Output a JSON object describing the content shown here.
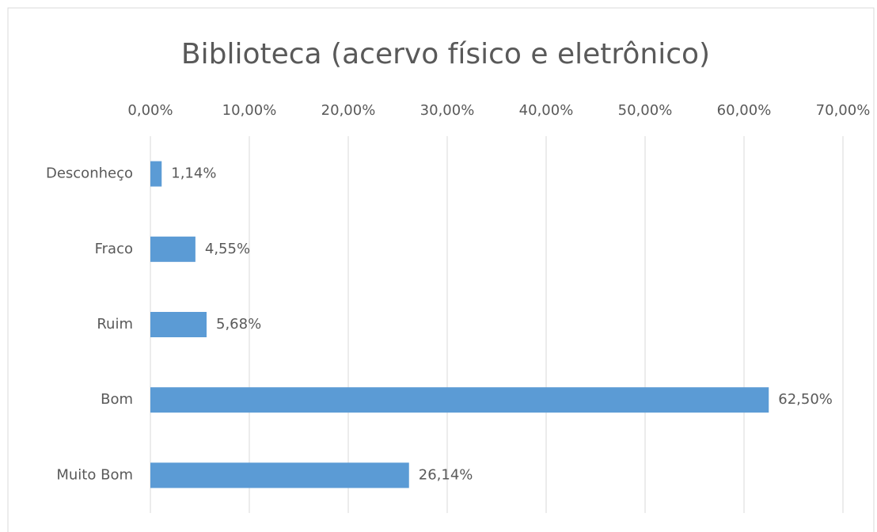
{
  "chart_data": {
    "type": "bar",
    "orientation": "horizontal",
    "title": "Biblioteca (acervo físico e eletrônico)",
    "categories": [
      "Desconheço",
      "Fraco",
      "Ruim",
      "Bom",
      "Muito Bom"
    ],
    "values": [
      1.14,
      4.55,
      5.68,
      62.5,
      26.14
    ],
    "value_labels": [
      "1,14%",
      "4,55%",
      "5,68%",
      "62,50%",
      "26,14%"
    ],
    "color": "#5b9bd5",
    "xlim": [
      0,
      70
    ],
    "xticks": [
      {
        "value": 0,
        "label": "0,00%"
      },
      {
        "value": 10,
        "label": "10,00%"
      },
      {
        "value": 20,
        "label": "20,00%"
      },
      {
        "value": 30,
        "label": "30,00%"
      },
      {
        "value": 40,
        "label": "40,00%"
      },
      {
        "value": 50,
        "label": "50,00%"
      },
      {
        "value": 60,
        "label": "60,00%"
      },
      {
        "value": 70,
        "label": "70,00%"
      }
    ],
    "grid": true
  }
}
